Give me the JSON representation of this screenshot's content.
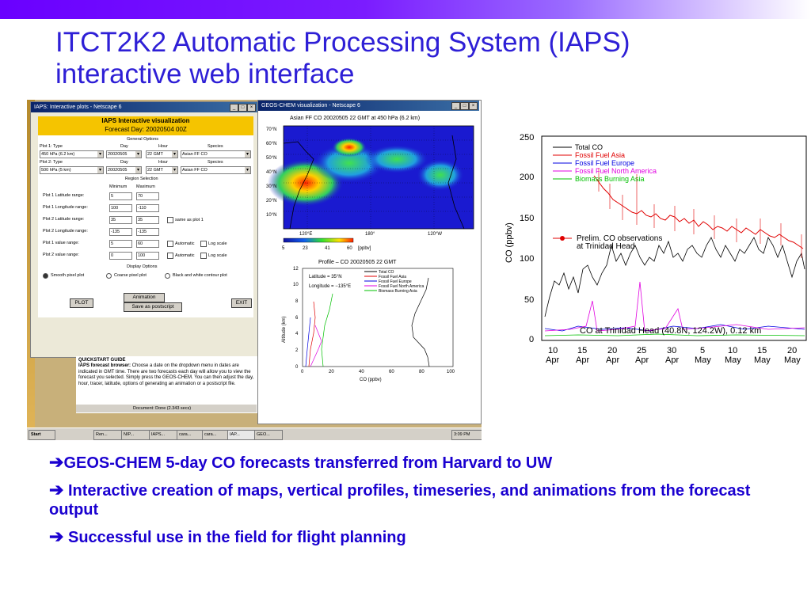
{
  "slide": {
    "title_line1": "ITCT2K2 Automatic Processing System (IAPS)",
    "title_line2": "interactive web interface",
    "bullets": [
      "GEOS-CHEM 5-day CO forecasts transferred from Harvard to UW",
      " Interactive creation of maps, vertical profiles, timeseries, and animations from the forecast output",
      " Successful use in the field for flight planning"
    ],
    "arrow_glyph": "➔"
  },
  "iaps_window": {
    "title": "IAPS: Interactive plots - Netscape 6",
    "header_title": "IAPS Interactive visualization",
    "header_subtitle": "Forecast Day: 20020504 00Z",
    "general_options": "General Options",
    "plot1_type_label": "Plot 1: Type",
    "plot2_type_label": "Plot 2: Type",
    "day_label": "Day",
    "hour_label": "Hour",
    "species_label": "Species",
    "plot1": {
      "type": "450 hPa (6.2 km)",
      "day": "20020505",
      "hour": "22 GMT",
      "species": "Asian FF CO"
    },
    "plot2": {
      "type": "500 hPa (5 km)",
      "day": "20020505",
      "hour": "22 GMT",
      "species": "Asian FF CO"
    },
    "region_selection": "Region Selection",
    "minimum_label": "Minimum",
    "maximum_label": "Maximum",
    "ranges": [
      {
        "label": "Plot 1 Latitude range:",
        "min": "5",
        "max": "70",
        "extra": ""
      },
      {
        "label": "Plot 1 Longitude range:",
        "min": "100",
        "max": "-110",
        "extra": ""
      },
      {
        "label": "Plot 2 Latitude range:",
        "min": "35",
        "max": "35",
        "extra": "same as plot 1"
      },
      {
        "label": "Plot 2 Longitude range:",
        "min": "-135",
        "max": "-135",
        "extra": ""
      },
      {
        "label": "Plot 1 value range:",
        "min": "5",
        "max": "60",
        "extra": "Automatic"
      },
      {
        "label": "Plot 2 value range:",
        "min": "0",
        "max": "100",
        "extra": "Automatic"
      }
    ],
    "log_scale_label": "Log scale",
    "display_options": "Display Options",
    "display_radios": [
      "Smooth pixel plot",
      "Coarse pixel plot",
      "Black and white contour plot"
    ],
    "plot_button": "PLOT",
    "animation_button": "Animation",
    "postscript_button": "Save as postscript",
    "exit_button": "EXIT"
  },
  "quickstart": {
    "heading": "QUICKSTART GUIDE",
    "subheading": "IAPS forecast browser:",
    "text": "Choose a date on the dropdown menu in dates are indicated in GMT time. There are two forecasts each day will allow you to view the forecast you selected. Simply press the GEOS-CHEM. You can then adjust the day, hour, tracer, latitude, options of generating an animation or a postscript file.",
    "status": "Document: Done (2.343 secs)"
  },
  "geos_window": {
    "title": "GEOS-CHEM visualization - Netscape 6",
    "map_title": "Asian FF CO 20020505 22 GMT at 450 hPa (6.2 km)",
    "lat_labels": [
      "70°N",
      "60°N",
      "50°N",
      "40°N",
      "30°N",
      "20°N",
      "10°N"
    ],
    "lon_labels": [
      "120°E",
      "180°",
      "120°W"
    ],
    "colorbar_ticks": [
      "5",
      "23",
      "41",
      "60"
    ],
    "colorbar_unit": "[ppbv]",
    "profile_title": "Profile – CO 20020505 22 GMT",
    "profile_lat": "Latitude = 35°N",
    "profile_lon": "Longitude = −135°E",
    "profile_xlabel": "CO (ppbv)",
    "profile_ylabel": "Altitude (km)",
    "profile_xticks": [
      "0",
      "20",
      "40",
      "60",
      "80",
      "100"
    ],
    "profile_yticks": [
      "0",
      "2",
      "4",
      "6",
      "8",
      "10",
      "12"
    ],
    "profile_legend": [
      "Total CO",
      "Fossil Fuel Asia",
      "Fossil Fuel Europe",
      "Fossil Fuel North America",
      "Biomass Burning Asia"
    ]
  },
  "taskbar": {
    "start": "Start",
    "items": [
      "Ren...",
      "NIP...",
      "IAPS...",
      "cara...",
      "cara...",
      "IAP...",
      "GEO..."
    ],
    "clock": "3:09 PM"
  },
  "timeseries": {
    "ylabel": "CO (ppbv)",
    "yticks": [
      "0",
      "50",
      "100",
      "150",
      "200",
      "250"
    ],
    "xticks": [
      [
        "10",
        "Apr"
      ],
      [
        "15",
        "Apr"
      ],
      [
        "20",
        "Apr"
      ],
      [
        "25",
        "Apr"
      ],
      [
        "30",
        "Apr"
      ],
      [
        "5",
        "May"
      ],
      [
        "10",
        "May"
      ],
      [
        "15",
        "May"
      ],
      [
        "20",
        "May"
      ]
    ],
    "legend": [
      {
        "name": "Total CO",
        "color": "#000000"
      },
      {
        "name": "Fossil Fuel Asia",
        "color": "#e00000"
      },
      {
        "name": "Fossil Fuel Europe",
        "color": "#0000e0"
      },
      {
        "name": "Fossil Fuel North America",
        "color": "#e000e0"
      },
      {
        "name": "Biomass Burning Asia",
        "color": "#00c000"
      }
    ],
    "obs_label_line1": "Prelim. CO observations",
    "obs_label_line2": "at Trinidad Head",
    "site_label": "CO at Trinidad Head (40.8N, 124.2W), 0.12 km"
  }
}
